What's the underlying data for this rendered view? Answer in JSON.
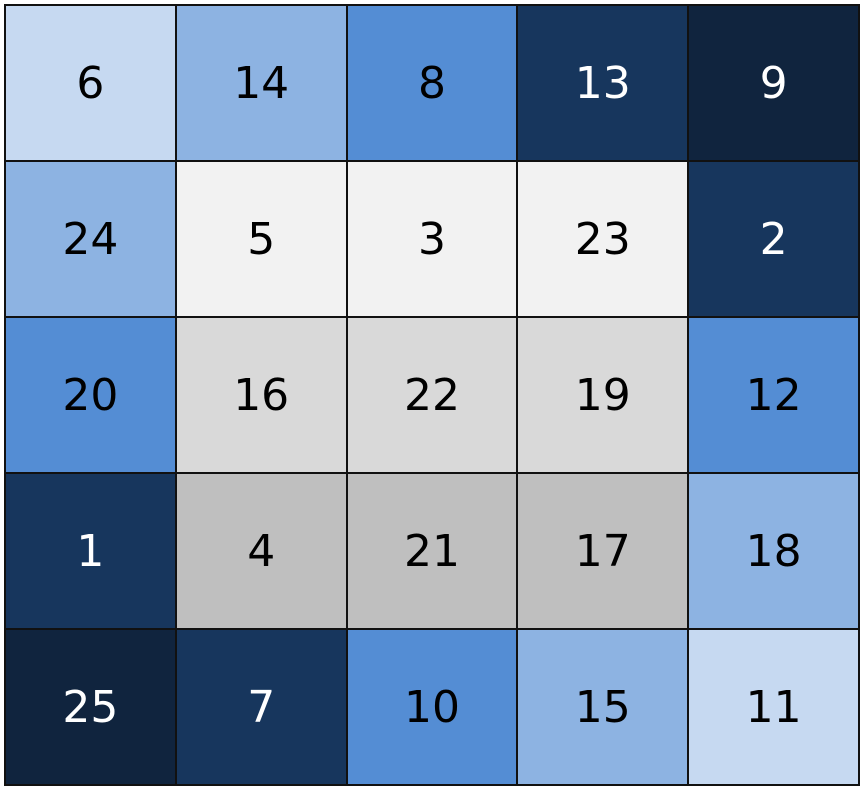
{
  "palette": {
    "lb": "#c6d9f1",
    "mlb": "#8db3e2",
    "mb": "#548dd4",
    "db": "#17365d",
    "xdb": "#10243e",
    "w": "#f2f2f2",
    "lg": "#d9d9d9",
    "g": "#bfbfbf"
  },
  "rows": [
    [
      {
        "v": "6",
        "c": "lb"
      },
      {
        "v": "14",
        "c": "mlb"
      },
      {
        "v": "8",
        "c": "mb"
      },
      {
        "v": "13",
        "c": "db"
      },
      {
        "v": "9",
        "c": "xdb"
      }
    ],
    [
      {
        "v": "24",
        "c": "mlb"
      },
      {
        "v": "5",
        "c": "w"
      },
      {
        "v": "3",
        "c": "w"
      },
      {
        "v": "23",
        "c": "w"
      },
      {
        "v": "2",
        "c": "db"
      }
    ],
    [
      {
        "v": "20",
        "c": "mb"
      },
      {
        "v": "16",
        "c": "lg"
      },
      {
        "v": "22",
        "c": "lg"
      },
      {
        "v": "19",
        "c": "lg"
      },
      {
        "v": "12",
        "c": "mb"
      }
    ],
    [
      {
        "v": "1",
        "c": "db"
      },
      {
        "v": "4",
        "c": "g"
      },
      {
        "v": "21",
        "c": "g"
      },
      {
        "v": "17",
        "c": "g"
      },
      {
        "v": "18",
        "c": "mlb"
      }
    ],
    [
      {
        "v": "25",
        "c": "xdb"
      },
      {
        "v": "7",
        "c": "db"
      },
      {
        "v": "10",
        "c": "mb"
      },
      {
        "v": "15",
        "c": "mlb"
      },
      {
        "v": "11",
        "c": "lb"
      }
    ]
  ]
}
